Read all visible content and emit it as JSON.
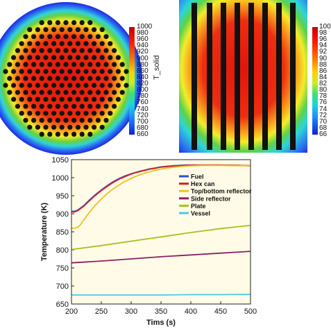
{
  "colors": {
    "fuel": "#2e4fd6",
    "hex_can": "#d8201c",
    "top_bottom_reflector": "#f0c020",
    "side_reflector": "#8a1f66",
    "plate": "#a6c21c",
    "vessel": "#4cc6f0",
    "plot_background": "#fffbe6"
  },
  "colorbar_left": {
    "label": "T_solid",
    "ticks": [
      "1000",
      "980",
      "960",
      "940",
      "920",
      "900",
      "880",
      "860",
      "840",
      "820",
      "800",
      "780",
      "760",
      "740",
      "720",
      "700",
      "680",
      "660"
    ]
  },
  "colorbar_right": {
    "ticks": [
      "100",
      "98",
      "96",
      "94",
      "92",
      "90",
      "88",
      "86",
      "84",
      "82",
      "80",
      "78",
      "76",
      "74",
      "72",
      "70",
      "68",
      "66"
    ]
  },
  "chart_data": {
    "type": "line",
    "xlabel": "Tims (s)",
    "ylabel": "Temperature (K)",
    "xlim": [
      200,
      500
    ],
    "ylim": [
      650,
      1050
    ],
    "xticks": [
      "200",
      "250",
      "300",
      "350",
      "400",
      "450",
      "500"
    ],
    "yticks": [
      "650",
      "700",
      "750",
      "800",
      "850",
      "900",
      "950",
      "1000",
      "1050"
    ],
    "legend_placement": "top-right",
    "series": [
      {
        "name": "Fuel",
        "color_key": "fuel",
        "x": [
          200,
          205,
          210,
          220,
          230,
          240,
          250,
          260,
          270,
          280,
          290,
          300,
          310,
          320,
          330,
          340,
          350,
          370,
          390,
          420,
          450,
          480,
          500
        ],
        "y": [
          907,
          907,
          910,
          922,
          938,
          953,
          966,
          978,
          989,
          998,
          1005,
          1011,
          1016,
          1020,
          1024,
          1027,
          1030,
          1033,
          1035,
          1035,
          1035,
          1034,
          1033
        ]
      },
      {
        "name": "Hex can",
        "color_key": "hex_can",
        "x": [
          200,
          205,
          210,
          220,
          230,
          240,
          250,
          260,
          270,
          280,
          290,
          300,
          310,
          320,
          330,
          340,
          350,
          370,
          390,
          420,
          450,
          480,
          500
        ],
        "y": [
          905,
          905,
          908,
          920,
          936,
          951,
          964,
          976,
          987,
          996,
          1003,
          1010,
          1015,
          1019,
          1023,
          1026,
          1029,
          1032,
          1034,
          1035,
          1035,
          1034,
          1033
        ]
      },
      {
        "name": "Top/bottom reflector",
        "color_key": "top_bottom_reflector",
        "x": [
          200,
          205,
          210,
          215,
          220,
          230,
          240,
          250,
          260,
          270,
          280,
          290,
          300,
          310,
          320,
          330,
          340,
          350,
          370,
          390,
          420,
          450,
          480,
          500
        ],
        "y": [
          860,
          860,
          862,
          870,
          882,
          904,
          924,
          941,
          956,
          969,
          980,
          990,
          998,
          1005,
          1011,
          1016,
          1020,
          1024,
          1029,
          1032,
          1034,
          1034,
          1033,
          1033
        ]
      },
      {
        "name": "Side reflector",
        "color_key": "side_reflector",
        "x": [
          200,
          250,
          300,
          350,
          400,
          450,
          500
        ],
        "y": [
          764,
          769,
          775,
          781,
          786,
          791,
          796
        ]
      },
      {
        "name": "Plate",
        "color_key": "plate",
        "x": [
          200,
          250,
          300,
          350,
          400,
          450,
          500
        ],
        "y": [
          801,
          812,
          824,
          836,
          848,
          859,
          868
        ]
      },
      {
        "name": "Vessel",
        "color_key": "vessel",
        "x": [
          200,
          250,
          300,
          350,
          400,
          450,
          500
        ],
        "y": [
          675,
          675,
          675,
          675,
          676,
          676,
          677
        ]
      }
    ]
  }
}
